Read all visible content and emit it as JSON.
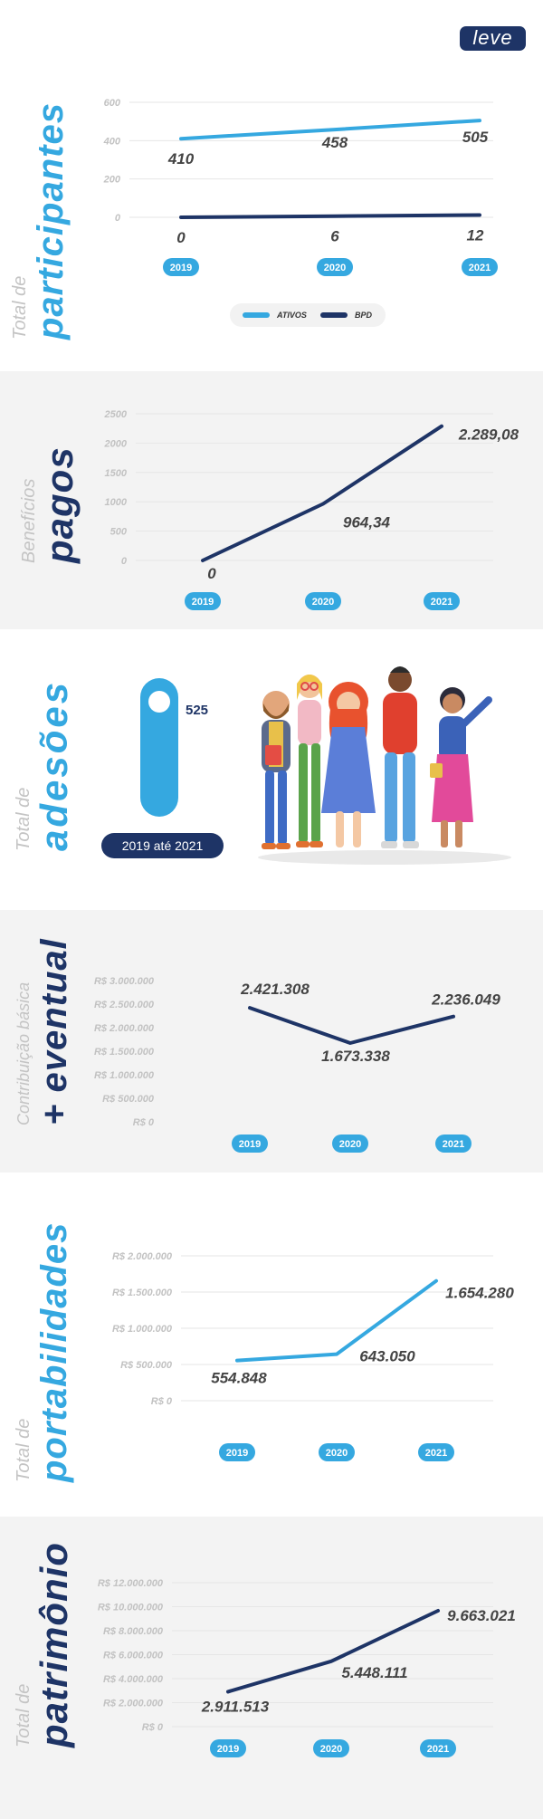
{
  "brand": {
    "logo_text": "leve",
    "color_dark": "#1e3466",
    "color_light": "#35a8e0"
  },
  "sections": {
    "participantes": {
      "title_small": "Total de",
      "title_big": "participantes"
    },
    "pagos": {
      "title_small": "Benefícios",
      "title_big": "pagos"
    },
    "adesoes": {
      "title_small": "Total de",
      "title_big": "adesões",
      "value": "525",
      "period": "2019 até 2021",
      "illustration": "group-of-people-illustration"
    },
    "eventual": {
      "title_small": "Contribuição básica",
      "title_big": "+ eventual"
    },
    "portabilidades": {
      "title_small": "Total de",
      "title_big": "portabilidades"
    },
    "patrimonio": {
      "title_small": "Total de",
      "title_big": "patrimônio"
    }
  },
  "chart_data": [
    {
      "id": "participantes",
      "type": "line",
      "categories": [
        "2019",
        "2020",
        "2021"
      ],
      "yticks": [
        "600",
        "400",
        "200",
        "0"
      ],
      "ylim": [
        0,
        600
      ],
      "grid": true,
      "legend_position": "bottom-center",
      "series": [
        {
          "name": "ATIVOS",
          "values": [
            410,
            458,
            505
          ],
          "labels": [
            "410",
            "458",
            "505"
          ],
          "color": "#35a8e0"
        },
        {
          "name": "BPD",
          "values": [
            0,
            6,
            12
          ],
          "labels": [
            "0",
            "6",
            "12"
          ],
          "color": "#1e3466"
        }
      ]
    },
    {
      "id": "pagos",
      "type": "line",
      "categories": [
        "2019",
        "2020",
        "2021"
      ],
      "yticks": [
        "2500",
        "2000",
        "1500",
        "1000",
        "500",
        "0"
      ],
      "ylim": [
        0,
        2500
      ],
      "grid": true,
      "series": [
        {
          "values": [
            0,
            964.34,
            2289.08
          ],
          "labels": [
            "0",
            "964,34",
            "2.289,08"
          ],
          "color": "#1e3466"
        }
      ]
    },
    {
      "id": "eventual",
      "type": "line",
      "categories": [
        "2019",
        "2020",
        "2021"
      ],
      "yticks": [
        "R$ 3.000.000",
        "R$ 2.500.000",
        "R$ 2.000.000",
        "R$ 1.500.000",
        "R$ 1.000.000",
        "R$ 500.000",
        "R$ 0"
      ],
      "ylim": [
        0,
        3000000
      ],
      "grid": false,
      "series": [
        {
          "values": [
            2421308,
            1673338,
            2236049
          ],
          "labels": [
            "2.421.308",
            "1.673.338",
            "2.236.049"
          ],
          "color": "#1e3466"
        }
      ]
    },
    {
      "id": "portabilidades",
      "type": "line",
      "categories": [
        "2019",
        "2020",
        "2021"
      ],
      "yticks": [
        "R$ 2.000.000",
        "R$ 1.500.000",
        "R$ 1.000.000",
        "R$ 500.000",
        "R$ 0"
      ],
      "ylim": [
        0,
        2000000
      ],
      "grid": true,
      "series": [
        {
          "values": [
            554848,
            643050,
            1654280
          ],
          "labels": [
            "554.848",
            "643.050",
            "1.654.280"
          ],
          "color": "#35a8e0"
        }
      ]
    },
    {
      "id": "patrimonio",
      "type": "line",
      "categories": [
        "2019",
        "2020",
        "2021"
      ],
      "yticks": [
        "R$ 12.000.000",
        "R$ 10.000.000",
        "R$ 8.000.000",
        "R$ 6.000.000",
        "R$ 4.000.000",
        "R$ 2.000.000",
        "R$ 0"
      ],
      "ylim": [
        0,
        12000000
      ],
      "grid": true,
      "series": [
        {
          "values": [
            2911513,
            5448111,
            9663021
          ],
          "labels": [
            "2.911.513",
            "5.448.111",
            "9.663.021"
          ],
          "color": "#1e3466"
        }
      ]
    }
  ]
}
